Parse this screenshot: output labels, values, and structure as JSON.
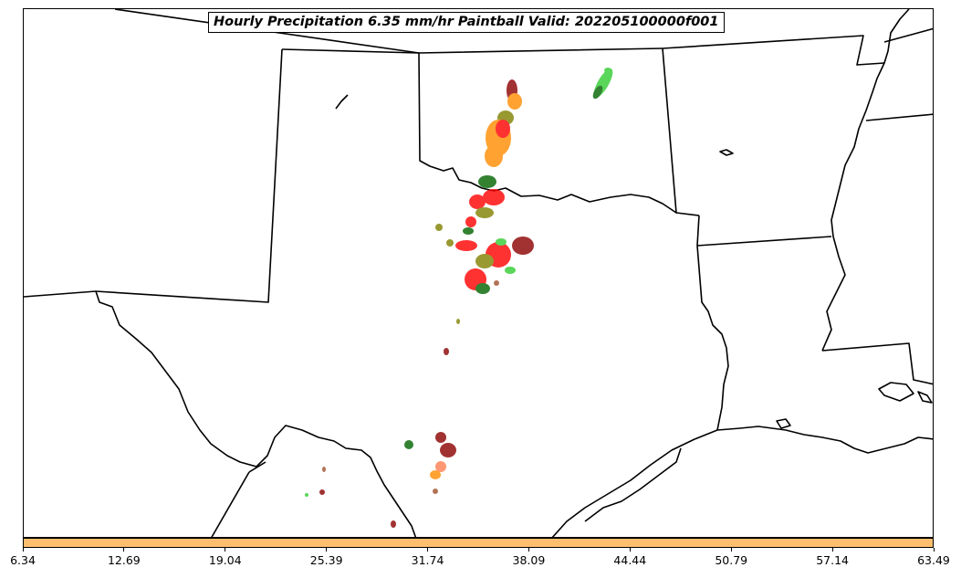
{
  "title": "Hourly Precipitation 6.35 mm/hr Paintball Valid: 202205100000f001",
  "colorbar": {
    "color": "#fdbf6f",
    "ticks": [
      "6.34",
      "12.69",
      "19.04",
      "25.39",
      "31.74",
      "38.09",
      "44.44",
      "50.79",
      "57.14",
      "63.49"
    ]
  },
  "colors": {
    "boundary": "#000000",
    "paintball": [
      "#8b0000",
      "#ff0000",
      "#ff8c00",
      "#006400",
      "#32cd32",
      "#808000",
      "#ff7f50",
      "#a0522d"
    ]
  }
}
